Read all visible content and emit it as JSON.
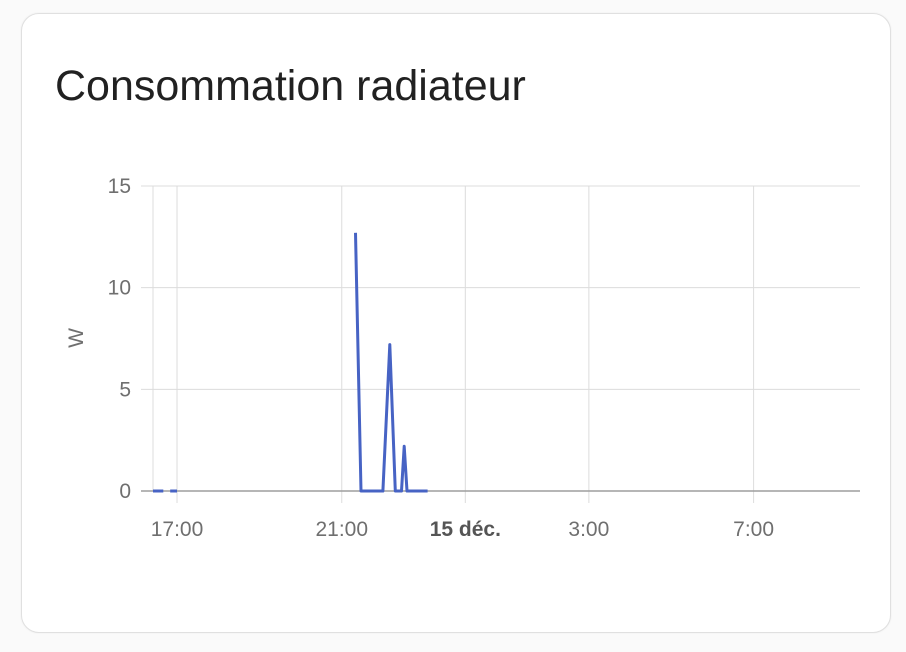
{
  "card": {
    "title": "Consommation radiateur"
  },
  "colors": {
    "series": "#4763c4",
    "grid": "#dcdcdc",
    "axis": "#9e9e9e",
    "tick_text": "#6f6f6f",
    "title": "#212121",
    "card_border": "#e0e0e0"
  },
  "chart_data": {
    "type": "line",
    "title": "Consommation radiateur",
    "ylabel": "W",
    "xlabel": "",
    "ylim": [
      0,
      15
    ],
    "yticks": [
      0,
      5,
      10,
      15
    ],
    "xlim": [
      "14 déc. 16:25",
      "15 déc. 09:35"
    ],
    "xticks": [
      {
        "label": "17:00",
        "time": "14 déc. 17:00",
        "bold": false
      },
      {
        "label": "21:00",
        "time": "14 déc. 21:00",
        "bold": false
      },
      {
        "label": "15 déc.",
        "time": "15 déc. 00:00",
        "bold": true
      },
      {
        "label": "3:00",
        "time": "15 déc. 03:00",
        "bold": false
      },
      {
        "label": "7:00",
        "time": "15 déc. 07:00",
        "bold": false
      }
    ],
    "grid": true,
    "legend": "none",
    "series": [
      {
        "segments": [
          [
            {
              "t": "14 déc. 16:25",
              "w": 0
            },
            {
              "t": "14 déc. 16:40",
              "w": 0
            }
          ],
          [
            {
              "t": "14 déc. 16:50",
              "w": 0
            },
            {
              "t": "14 déc. 17:00",
              "w": 0
            }
          ],
          [
            {
              "t": "14 déc. 21:20",
              "w": 12.7
            },
            {
              "t": "14 déc. 21:28",
              "w": 0
            },
            {
              "t": "14 déc. 22:00",
              "w": 0
            },
            {
              "t": "14 déc. 22:10",
              "w": 7.2
            },
            {
              "t": "14 déc. 22:18",
              "w": 0
            },
            {
              "t": "14 déc. 22:27",
              "w": 0
            },
            {
              "t": "14 déc. 22:31",
              "w": 2.2
            },
            {
              "t": "14 déc. 22:35",
              "w": 0
            },
            {
              "t": "14 déc. 23:05",
              "w": 0
            }
          ]
        ]
      }
    ]
  }
}
